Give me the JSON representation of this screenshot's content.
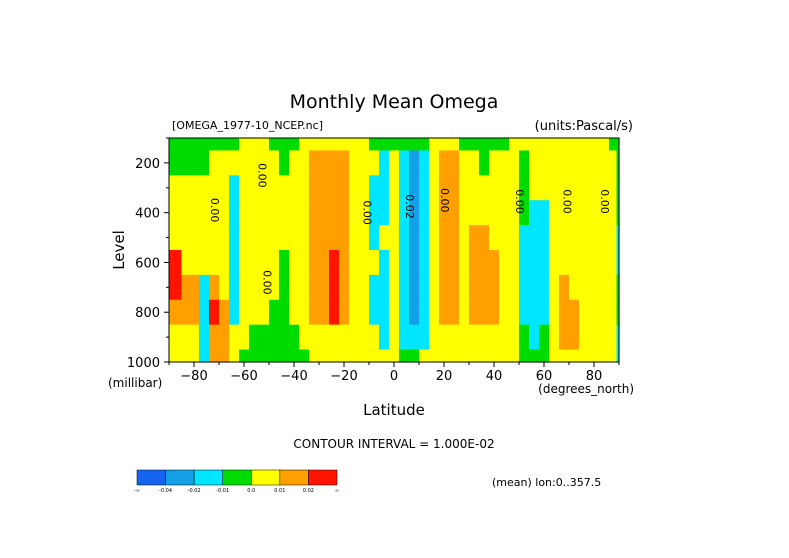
{
  "chart_data": {
    "type": "heatmap",
    "title": "Monthly Mean Omega",
    "file_label": "[OMEGA_1977-10_NCEP.nc]",
    "units_label": "(units:Pascal/s)",
    "xlabel": "Latitude",
    "x_units": "(degrees_north)",
    "ylabel": "Level",
    "y_units": "(millibar)",
    "xlim": [
      -90,
      90
    ],
    "ylim": [
      1000,
      100
    ],
    "x_ticks": [
      -80,
      -60,
      -40,
      -20,
      0,
      20,
      40,
      60,
      80
    ],
    "y_ticks": [
      200,
      400,
      600,
      800,
      1000
    ],
    "contour_interval_text": "CONTOUR INTERVAL = 1.000E-02",
    "mean_text": "(mean) lon:0..357.5",
    "contour_labels": [
      {
        "text": "0.00",
        "lat": -72,
        "level": 390
      },
      {
        "text": "0.00",
        "lat": -53,
        "level": 250
      },
      {
        "text": "0.00",
        "lat": -51,
        "level": 680
      },
      {
        "text": "0.00",
        "lat": -11,
        "level": 400
      },
      {
        "text": "0.02",
        "lat": 6,
        "level": 375
      },
      {
        "text": "0.00",
        "lat": 20,
        "level": 350
      },
      {
        "text": "0.00",
        "lat": 50,
        "level": 355
      },
      {
        "text": "0.00",
        "lat": 69,
        "level": 355
      },
      {
        "text": "0.00",
        "lat": 84,
        "level": 355
      }
    ],
    "legend": {
      "colors": [
        "#1464f0",
        "#14a0e6",
        "#00e6ff",
        "#00dc00",
        "#ffff00",
        "#ffa000",
        "#ff1400"
      ],
      "labels": [
        "-∞",
        "-0.04",
        "-0.02",
        "-0.01",
        "0.0",
        "0.01",
        "0.02",
        "∞"
      ]
    },
    "field": {
      "lats": [
        -90,
        -80,
        -76,
        -72,
        -68,
        -64,
        -60,
        -56,
        -52,
        -48,
        -44,
        -40,
        -36,
        -32,
        -28,
        -24,
        -20,
        -16,
        -12,
        -8,
        -4,
        0,
        4,
        8,
        12,
        16,
        20,
        24,
        28,
        32,
        36,
        40,
        44,
        48,
        52,
        56,
        60,
        64,
        68,
        72,
        76,
        80,
        84,
        88,
        90
      ],
      "levels": [
        100,
        200,
        300,
        400,
        500,
        600,
        700,
        800,
        900,
        1000
      ],
      "values": [
        [
          -0.005,
          -0.005,
          -0.005,
          -0.005,
          -0.005,
          -0.005,
          0.003,
          0.004,
          0.003,
          -0.005,
          -0.005,
          -0.005,
          0.003,
          0.004,
          0.005,
          0.005,
          0.006,
          0.005,
          0.003,
          -0.005,
          -0.005,
          -0.005,
          -0.005,
          -0.005,
          -0.005,
          0.003,
          0.004,
          0.003,
          -0.005,
          -0.005,
          -0.005,
          -0.005,
          -0.005,
          0.003,
          0.004,
          0.003,
          0.004,
          0.003,
          0.004,
          0.005,
          0.005,
          0.005,
          0.005,
          -0.005,
          -0.005
        ],
        [
          -0.005,
          -0.005,
          -0.005,
          0.003,
          0.004,
          0.003,
          0.004,
          0.005,
          0.003,
          0.003,
          -0.005,
          0.003,
          0.004,
          0.012,
          0.013,
          0.014,
          0.013,
          0.008,
          0.003,
          0.003,
          -0.011,
          0.003,
          -0.012,
          -0.022,
          -0.012,
          0.004,
          0.012,
          0.011,
          0.003,
          0.003,
          -0.005,
          0.003,
          0.003,
          0.003,
          -0.005,
          0.004,
          0.004,
          0.003,
          0.003,
          0.004,
          0.005,
          0.004,
          0.003,
          0.003,
          -0.005
        ],
        [
          0.003,
          0.003,
          0.003,
          0.003,
          0.004,
          -0.012,
          0.004,
          0.004,
          0.003,
          0.003,
          0.003,
          0.003,
          0.005,
          0.013,
          0.015,
          0.016,
          0.014,
          0.009,
          0.003,
          -0.011,
          -0.012,
          0.003,
          -0.013,
          -0.024,
          -0.014,
          0.004,
          0.013,
          0.012,
          0.004,
          0.003,
          0.003,
          0.003,
          0.003,
          0.003,
          -0.005,
          0.004,
          0.004,
          0.003,
          0.003,
          0.004,
          0.005,
          0.004,
          0.003,
          0.003,
          -0.005
        ],
        [
          0.003,
          0.003,
          0.003,
          0.004,
          0.004,
          -0.013,
          0.004,
          0.004,
          0.004,
          0.003,
          0.003,
          0.003,
          0.005,
          0.014,
          0.016,
          0.017,
          0.015,
          0.009,
          0.003,
          -0.012,
          -0.012,
          0.003,
          -0.014,
          -0.025,
          -0.014,
          0.004,
          0.013,
          0.012,
          0.005,
          0.004,
          0.004,
          0.003,
          0.003,
          0.004,
          -0.005,
          -0.013,
          -0.012,
          0.004,
          0.004,
          0.004,
          0.005,
          0.004,
          0.003,
          0.003,
          -0.005
        ],
        [
          0.003,
          0.003,
          0.003,
          0.004,
          0.004,
          -0.014,
          0.004,
          0.004,
          0.004,
          0.003,
          0.003,
          0.003,
          0.005,
          0.014,
          0.016,
          0.018,
          0.016,
          0.009,
          0.003,
          -0.012,
          0.003,
          0.003,
          -0.016,
          -0.026,
          -0.015,
          0.004,
          0.013,
          0.012,
          0.005,
          0.012,
          0.013,
          0.004,
          0.003,
          0.004,
          -0.012,
          -0.014,
          -0.013,
          0.004,
          0.004,
          0.004,
          0.005,
          0.004,
          0.003,
          0.003,
          -0.012
        ],
        [
          0.025,
          0.004,
          0.004,
          0.004,
          0.004,
          -0.013,
          0.004,
          0.004,
          0.004,
          0.003,
          -0.005,
          0.003,
          0.005,
          0.014,
          0.017,
          0.023,
          0.017,
          0.009,
          0.003,
          0.003,
          -0.011,
          0.003,
          -0.017,
          -0.027,
          -0.016,
          0.004,
          0.013,
          0.012,
          0.005,
          0.013,
          0.014,
          0.014,
          0.005,
          0.004,
          -0.012,
          -0.014,
          -0.013,
          0.004,
          0.005,
          0.004,
          0.005,
          0.004,
          0.003,
          0.003,
          -0.012
        ],
        [
          0.026,
          0.012,
          -0.011,
          0.014,
          0.004,
          -0.012,
          0.004,
          0.004,
          0.003,
          0.003,
          -0.005,
          0.003,
          0.005,
          0.014,
          0.017,
          0.024,
          0.017,
          0.009,
          0.003,
          -0.011,
          -0.011,
          0.003,
          -0.017,
          -0.027,
          -0.016,
          0.004,
          0.012,
          0.012,
          0.005,
          0.013,
          0.014,
          0.013,
          0.005,
          0.004,
          -0.011,
          -0.013,
          -0.012,
          0.004,
          0.012,
          0.005,
          0.004,
          0.004,
          0.003,
          0.003,
          -0.005
        ],
        [
          0.012,
          0.012,
          -0.012,
          0.024,
          0.012,
          -0.011,
          0.004,
          0.004,
          0.003,
          -0.005,
          -0.005,
          0.003,
          0.005,
          0.013,
          0.016,
          0.023,
          0.016,
          0.008,
          0.003,
          -0.011,
          -0.011,
          0.003,
          -0.016,
          -0.025,
          -0.015,
          0.004,
          0.012,
          0.012,
          0.005,
          0.012,
          0.013,
          0.012,
          0.005,
          0.004,
          -0.011,
          -0.012,
          -0.011,
          0.004,
          0.012,
          0.012,
          0.004,
          0.003,
          0.003,
          0.003,
          -0.005
        ],
        [
          0.004,
          0.004,
          -0.011,
          0.013,
          0.012,
          0.003,
          0.003,
          -0.005,
          -0.005,
          -0.005,
          -0.005,
          -0.005,
          0.003,
          0.004,
          0.004,
          0.004,
          0.004,
          0.003,
          0.003,
          0.003,
          -0.011,
          0.003,
          -0.013,
          -0.013,
          -0.012,
          0.003,
          0.004,
          0.004,
          0.004,
          0.004,
          0.004,
          0.004,
          0.003,
          0.003,
          -0.005,
          -0.011,
          -0.005,
          0.003,
          0.012,
          0.012,
          0.003,
          0.003,
          0.003,
          0.003,
          -0.012
        ],
        [
          0.004,
          0.004,
          -0.011,
          0.012,
          0.012,
          0.003,
          -0.005,
          -0.005,
          -0.005,
          -0.005,
          -0.005,
          -0.005,
          -0.005,
          0.003,
          0.003,
          0.003,
          0.003,
          0.003,
          0.003,
          0.003,
          0.003,
          0.003,
          -0.005,
          -0.005,
          0.003,
          0.003,
          0.003,
          0.003,
          0.003,
          0.003,
          0.003,
          0.003,
          0.003,
          0.003,
          -0.005,
          -0.005,
          -0.005,
          0.003,
          0.005,
          0.004,
          0.003,
          0.003,
          0.003,
          0.003,
          -0.012
        ]
      ]
    }
  }
}
